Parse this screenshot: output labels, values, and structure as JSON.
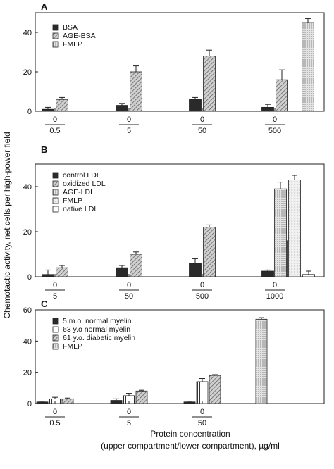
{
  "figure": {
    "ylabel": "Chemotactic activity, net cells per high-power field",
    "xlabel_line1": "Protein concentration",
    "xlabel_line2": "(upper compartment/lower compartment), µg/ml"
  },
  "colors": {
    "dark": "#2a2a2a",
    "hatch": "#9a9a9a",
    "stipple": "#c4c4c4",
    "light": "#dedede",
    "white": "#ffffff"
  },
  "chart_data": [
    {
      "type": "bar",
      "panel": "A",
      "ylim": [
        0,
        50
      ],
      "yticks": [
        0,
        20,
        40
      ],
      "groups": [
        {
          "upper": "0",
          "lower": "0.5"
        },
        {
          "upper": "0",
          "lower": "5"
        },
        {
          "upper": "0",
          "lower": "50"
        },
        {
          "upper": "0",
          "lower": "500"
        },
        {
          "upper": "",
          "lower": ""
        }
      ],
      "series": [
        {
          "name": "BSA",
          "style": "dark",
          "values": [
            1,
            3,
            6,
            2,
            null
          ],
          "errors": [
            1,
            1,
            1,
            1.5,
            null
          ]
        },
        {
          "name": "AGE-BSA",
          "style": "hatch",
          "values": [
            6,
            20,
            28,
            16,
            null
          ],
          "errors": [
            1,
            3,
            3,
            5,
            null
          ]
        },
        {
          "name": "FMLP",
          "style": "stipple",
          "values": [
            null,
            null,
            null,
            null,
            45
          ],
          "errors": [
            null,
            null,
            null,
            null,
            2
          ]
        }
      ]
    },
    {
      "type": "bar",
      "panel": "B",
      "ylim": [
        0,
        50
      ],
      "yticks": [
        0,
        20,
        40
      ],
      "groups": [
        {
          "upper": "0",
          "lower": "5"
        },
        {
          "upper": "0",
          "lower": "50"
        },
        {
          "upper": "0",
          "lower": "500"
        },
        {
          "upper": "0",
          "lower": "1000"
        },
        {
          "upper": "",
          "lower": ""
        }
      ],
      "series": [
        {
          "name": "control LDL",
          "style": "dark",
          "values": [
            1,
            4,
            6,
            2.5,
            null
          ],
          "errors": [
            2,
            1,
            2,
            0.5,
            null
          ]
        },
        {
          "name": "oxidized LDL",
          "style": "hatch",
          "values": [
            4,
            10,
            22,
            16,
            null
          ],
          "errors": [
            1,
            1,
            1,
            2,
            null
          ]
        },
        {
          "name": "AGE-LDL",
          "style": "stipple",
          "values": [
            null,
            null,
            null,
            null,
            39
          ],
          "errors": [
            null,
            null,
            null,
            null,
            3
          ]
        },
        {
          "name": "FMLP",
          "style": "light",
          "values": [
            null,
            null,
            null,
            null,
            43
          ],
          "errors": [
            null,
            null,
            null,
            null,
            2
          ]
        },
        {
          "name": "native LDL",
          "style": "white",
          "values": [
            null,
            null,
            null,
            null,
            1
          ],
          "errors": [
            null,
            null,
            null,
            null,
            1.5
          ]
        }
      ]
    },
    {
      "type": "bar",
      "panel": "C",
      "ylim": [
        0,
        60
      ],
      "yticks": [
        0,
        20,
        40,
        60
      ],
      "groups": [
        {
          "upper": "0",
          "lower": "0.5"
        },
        {
          "upper": "0",
          "lower": "5"
        },
        {
          "upper": "0",
          "lower": "50"
        },
        {
          "upper": "",
          "lower": ""
        }
      ],
      "series": [
        {
          "name": "5 m.o. normal myelin",
          "style": "dark",
          "values": [
            1,
            2,
            1,
            null
          ],
          "errors": [
            0.5,
            1,
            0.5,
            null
          ]
        },
        {
          "name": "63 y.o normal myelin",
          "style": "vlines",
          "values": [
            3,
            5,
            14,
            null
          ],
          "errors": [
            1,
            1.5,
            2,
            null
          ]
        },
        {
          "name": "61 y.o. diabetic myelin",
          "style": "hatch",
          "values": [
            3,
            8,
            18,
            null
          ],
          "errors": [
            0.5,
            0.5,
            0.5,
            null
          ]
        },
        {
          "name": "FMLP",
          "style": "stipple",
          "values": [
            null,
            null,
            null,
            54
          ],
          "errors": [
            null,
            null,
            null,
            1
          ]
        }
      ]
    }
  ]
}
